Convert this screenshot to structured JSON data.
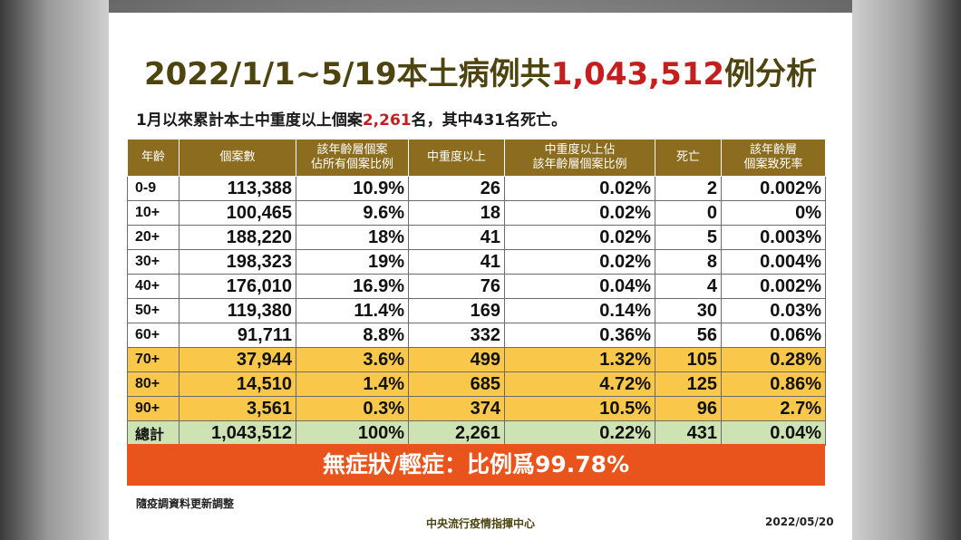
{
  "title": {
    "prefix": "2022/1/1~5/19本土病例共",
    "highlight": "1,043,512",
    "suffix": "例分析"
  },
  "subtitle": {
    "prefix": "1月以來累計本土中重度以上個案",
    "highlight": "2,261",
    "suffix": "名，其中431名死亡。"
  },
  "table": {
    "headers": [
      "年齡",
      "個案數",
      "該年齡層個案\n佔所有個案比例",
      "中重度以上",
      "中重度以上佔\n該年齡層個案比例",
      "死亡",
      "該年齡層\n個案致死率"
    ],
    "rows": [
      [
        "0-9",
        "113,388",
        "10.9%",
        "26",
        "0.02%",
        "2",
        "0.002%"
      ],
      [
        "10+",
        "100,465",
        "9.6%",
        "18",
        "0.02%",
        "0",
        "0%"
      ],
      [
        "20+",
        "188,220",
        "18%",
        "41",
        "0.02%",
        "5",
        "0.003%"
      ],
      [
        "30+",
        "198,323",
        "19%",
        "41",
        "0.02%",
        "8",
        "0.004%"
      ],
      [
        "40+",
        "176,010",
        "16.9%",
        "76",
        "0.04%",
        "4",
        "0.002%"
      ],
      [
        "50+",
        "119,380",
        "11.4%",
        "169",
        "0.14%",
        "30",
        "0.03%"
      ],
      [
        "60+",
        "91,711",
        "8.8%",
        "332",
        "0.36%",
        "56",
        "0.06%"
      ],
      [
        "70+",
        "37,944",
        "3.6%",
        "499",
        "1.32%",
        "105",
        "0.28%"
      ],
      [
        "80+",
        "14,510",
        "1.4%",
        "685",
        "4.72%",
        "125",
        "0.86%"
      ],
      [
        "90+",
        "3,561",
        "0.3%",
        "374",
        "10.5%",
        "96",
        "2.7%"
      ],
      [
        "總計",
        "1,043,512",
        "100%",
        "2,261",
        "0.22%",
        "431",
        "0.04%"
      ]
    ],
    "highlight_rows": [
      7,
      8,
      9
    ],
    "total_row": 10
  },
  "banner": "無症狀/輕症：比例爲99.78%",
  "note": "隨疫調資料更新調整",
  "org": "中央流行疫情指揮中心",
  "date": "2022/05/20",
  "colors": {
    "header": "#8c6d1f",
    "highlight_row": "#f9c84a",
    "total_row": "#cde3b3",
    "banner": "#e8541b",
    "title_dark": "#4d4410",
    "title_red": "#c41e1e"
  }
}
